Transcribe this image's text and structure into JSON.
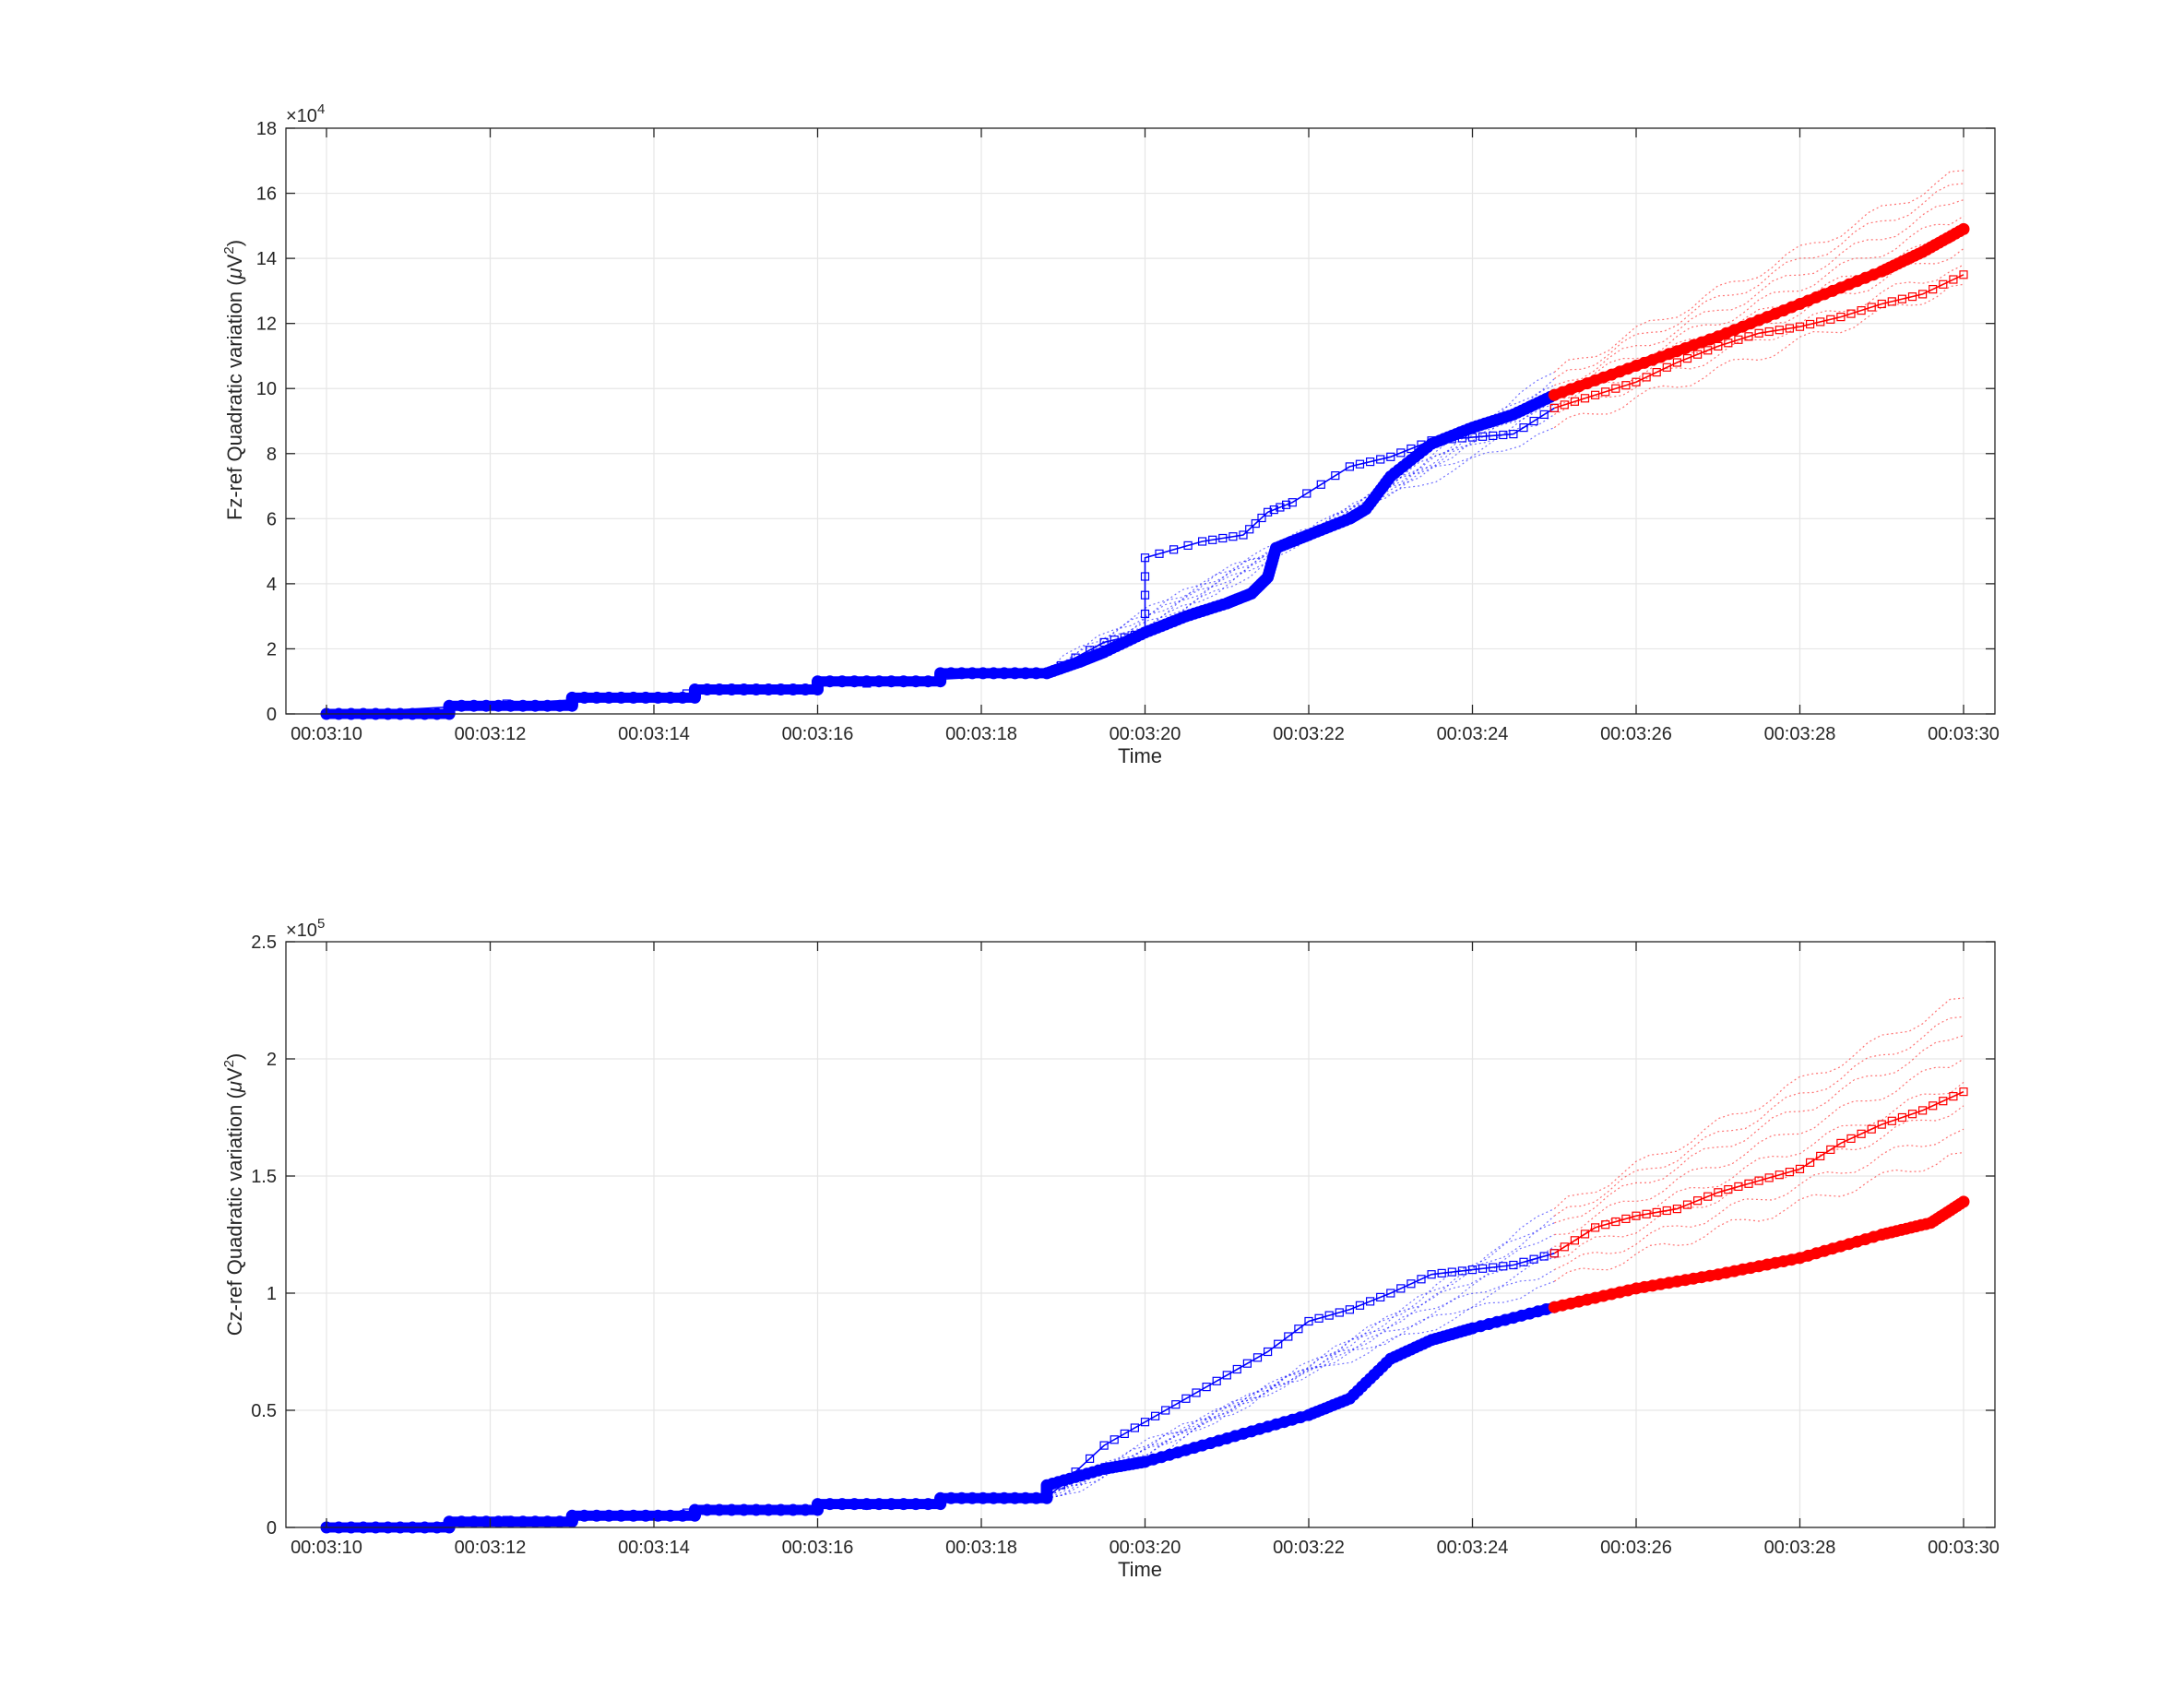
{
  "colors": {
    "blue": "#0000ff",
    "red": "#ff0000",
    "grid": "#e6e6e6",
    "axis": "#262626"
  },
  "chart_data": [
    {
      "type": "line",
      "xlabel": "Time",
      "ylabel": "Fz-ref Quadratic variation (μV²)",
      "ylabel_parts": {
        "pre": "Fz-ref Quadratic variation (",
        "mu": "μ",
        "unit": "V",
        "sup": "2",
        "post": ")"
      },
      "y_exponent": {
        "base": "×10",
        "power": "4"
      },
      "xlim": [
        0,
        20
      ],
      "ylim": [
        0,
        18
      ],
      "yticks": [
        0,
        2,
        4,
        6,
        8,
        10,
        12,
        14,
        16,
        18
      ],
      "ytick_labels": [
        "0",
        "2",
        "4",
        "6",
        "8",
        "10",
        "12",
        "14",
        "16",
        "18"
      ],
      "xticks": [
        0,
        2,
        4,
        6,
        8,
        10,
        12,
        14,
        16,
        18,
        20
      ],
      "xtick_labels": [
        "00:03:10",
        "00:03:12",
        "00:03:14",
        "00:03:16",
        "00:03:18",
        "00:03:20",
        "00:03:22",
        "00:03:24",
        "00:03:26",
        "00:03:28",
        "00:03:30"
      ],
      "grid": true,
      "series": [
        {
          "style": "thick-blue",
          "x": [
            0,
            1.5,
            1.5,
            3.0,
            3.0,
            4.5,
            4.5,
            6.0,
            6.0,
            7.5,
            7.5,
            8.8,
            9.2,
            9.5,
            10.0,
            10.5,
            11.0,
            11.3,
            11.5,
            11.6,
            12.0,
            12.5,
            12.7,
            13.0,
            13.5,
            14.0,
            14.5,
            15.0
          ],
          "values": [
            0,
            0,
            0.25,
            0.25,
            0.5,
            0.5,
            0.75,
            0.75,
            1.0,
            1.0,
            1.25,
            1.25,
            1.6,
            1.9,
            2.5,
            3.0,
            3.4,
            3.7,
            4.2,
            5.1,
            5.5,
            6.0,
            6.3,
            7.3,
            8.3,
            8.8,
            9.2,
            9.8
          ]
        },
        {
          "style": "thick-red",
          "x": [
            15.0,
            16.0,
            17.0,
            18.0,
            19.0,
            19.5,
            20.0
          ],
          "values": [
            9.8,
            10.7,
            11.6,
            12.6,
            13.6,
            14.2,
            14.9
          ]
        },
        {
          "style": "square-blue",
          "x": [
            0,
            8.8,
            9.5,
            10.0,
            10.0,
            10.7,
            11.2,
            11.5,
            11.8,
            12.5,
            13.0,
            13.5,
            14.0,
            14.5,
            15.0
          ],
          "values": [
            0,
            1.25,
            2.2,
            2.5,
            4.8,
            5.3,
            5.5,
            6.2,
            6.5,
            7.6,
            7.9,
            8.4,
            8.5,
            8.6,
            9.4
          ]
        },
        {
          "style": "square-red",
          "x": [
            15.0,
            15.5,
            16.0,
            16.5,
            17.0,
            17.5,
            18.0,
            18.5,
            19.0,
            19.5,
            20.0
          ],
          "values": [
            9.4,
            9.8,
            10.2,
            10.8,
            11.3,
            11.7,
            11.9,
            12.2,
            12.6,
            12.9,
            13.5
          ]
        }
      ],
      "spaghetti": {
        "blue_start": 8.8,
        "split": 15.0,
        "end": 20.0,
        "end_start_value": 1.25,
        "blue_end_values": [
          8.8,
          9.2,
          9.5,
          9.7,
          9.9,
          10.1,
          10.3,
          10.5
        ],
        "red_end_values": [
          13.2,
          13.8,
          14.3,
          14.8,
          15.3,
          15.8,
          16.3,
          16.7
        ]
      }
    },
    {
      "type": "line",
      "xlabel": "Time",
      "ylabel": "Cz-ref Quadratic variation (μV²)",
      "ylabel_parts": {
        "pre": "Cz-ref Quadratic variation (",
        "mu": "μ",
        "unit": "V",
        "sup": "2",
        "post": ")"
      },
      "y_exponent": {
        "base": "×10",
        "power": "5"
      },
      "xlim": [
        0,
        20
      ],
      "ylim": [
        0,
        2.5
      ],
      "yticks": [
        0,
        0.5,
        1,
        1.5,
        2,
        2.5
      ],
      "ytick_labels": [
        "0",
        "0.5",
        "1",
        "1.5",
        "2",
        "2.5"
      ],
      "xticks": [
        0,
        2,
        4,
        6,
        8,
        10,
        12,
        14,
        16,
        18,
        20
      ],
      "xtick_labels": [
        "00:03:10",
        "00:03:12",
        "00:03:14",
        "00:03:16",
        "00:03:18",
        "00:03:20",
        "00:03:22",
        "00:03:24",
        "00:03:26",
        "00:03:28",
        "00:03:30"
      ],
      "grid": true,
      "series": [
        {
          "style": "thick-blue",
          "x": [
            0,
            1.5,
            1.5,
            3.0,
            3.0,
            4.5,
            4.5,
            6.0,
            6.0,
            7.5,
            7.5,
            8.8,
            8.8,
            9.5,
            10.0,
            11.0,
            12.0,
            12.5,
            13.0,
            13.5,
            14.0,
            15.0
          ],
          "values": [
            0,
            0,
            0.025,
            0.025,
            0.05,
            0.05,
            0.075,
            0.075,
            0.1,
            0.1,
            0.125,
            0.125,
            0.18,
            0.25,
            0.28,
            0.38,
            0.48,
            0.55,
            0.72,
            0.8,
            0.85,
            0.94
          ]
        },
        {
          "style": "thick-red",
          "x": [
            15.0,
            16.0,
            17.0,
            18.0,
            19.0,
            19.6,
            20.0
          ],
          "values": [
            0.94,
            1.02,
            1.08,
            1.15,
            1.25,
            1.3,
            1.39
          ]
        },
        {
          "style": "square-blue",
          "x": [
            0,
            8.8,
            9.5,
            10.0,
            10.5,
            11.0,
            11.5,
            12.0,
            12.5,
            13.0,
            13.5,
            14.0,
            14.5,
            15.0
          ],
          "values": [
            0,
            0.125,
            0.35,
            0.45,
            0.55,
            0.65,
            0.75,
            0.88,
            0.93,
            1.0,
            1.08,
            1.1,
            1.12,
            1.17
          ]
        },
        {
          "style": "square-red",
          "x": [
            15.0,
            15.5,
            16.0,
            16.5,
            17.0,
            17.5,
            18.0,
            18.5,
            19.0,
            19.5,
            20.0
          ],
          "values": [
            1.17,
            1.28,
            1.33,
            1.36,
            1.43,
            1.48,
            1.53,
            1.64,
            1.72,
            1.78,
            1.86
          ]
        }
      ],
      "spaghetti": {
        "blue_start": 8.8,
        "split": 15.0,
        "end": 20.0,
        "end_start_value": 0.125,
        "blue_end_values": [
          1.05,
          1.1,
          1.15,
          1.2,
          1.25,
          1.3,
          1.33,
          1.36
        ],
        "red_end_values": [
          1.6,
          1.7,
          1.8,
          1.9,
          2.0,
          2.1,
          2.18,
          2.26
        ]
      }
    }
  ]
}
